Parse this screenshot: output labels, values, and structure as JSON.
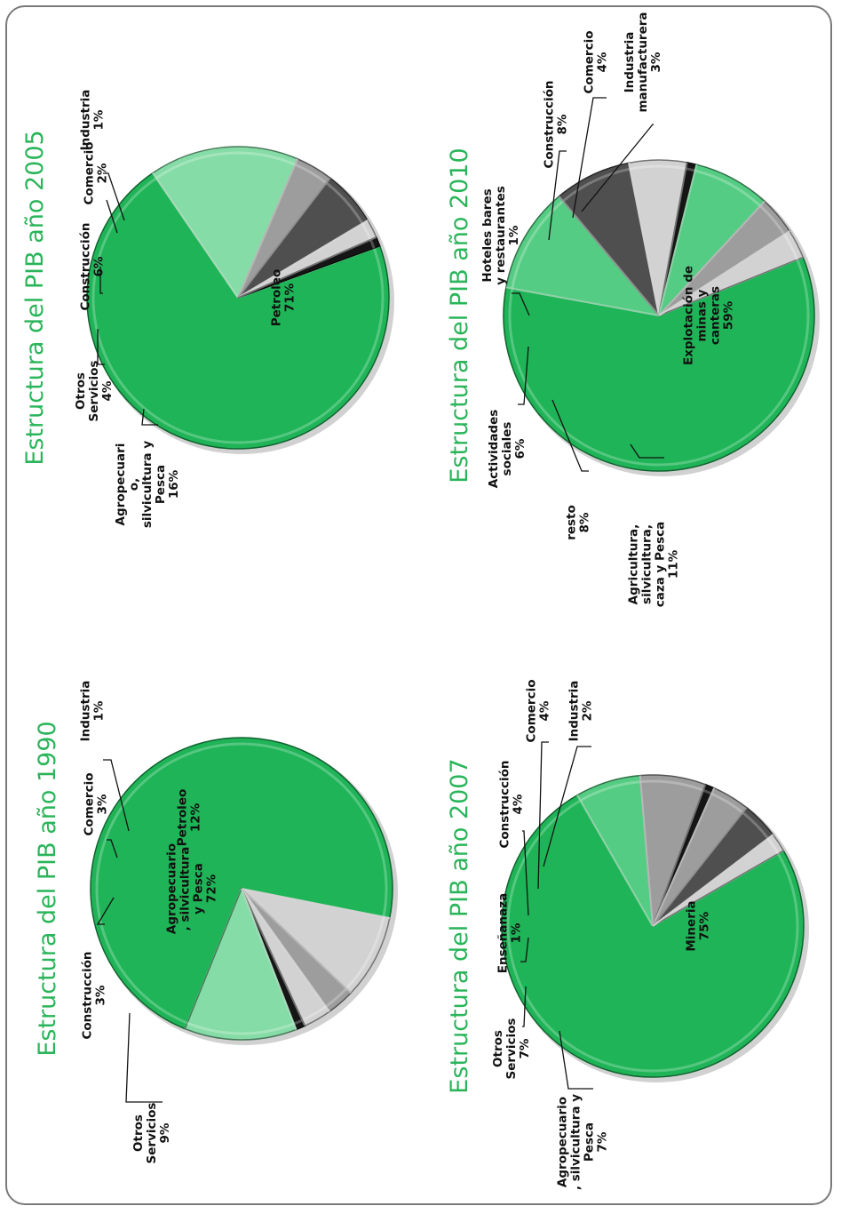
{
  "colors": {
    "green": "#1fb457",
    "light_green": "#86dca6",
    "mid_green": "#55cc83",
    "light_gray": "#d2d2d2",
    "gray": "#9d9d9d",
    "dark_gray": "#4f4f4f",
    "black": "#151515",
    "title_green": "#2ab55a"
  },
  "chart_data": [
    {
      "type": "pie",
      "title": "Estructura del PIB año 1990",
      "slices": [
        {
          "label": "Agropecuario, silvicultura y Pesca",
          "value": 72,
          "color": "green",
          "value_text": "72%",
          "label_lines": [
            "Agropecuario",
            ", silvicultura",
            "y Pesca",
            "72%"
          ]
        },
        {
          "label": "Otros Servicios",
          "value": 9,
          "color": "light_gray",
          "value_text": "9%",
          "label_lines": [
            "Otros",
            "Servicios",
            "9%"
          ]
        },
        {
          "label": "Construcción",
          "value": 3,
          "color": "gray",
          "value_text": "3%",
          "label_lines": [
            "Construcción",
            "3%"
          ]
        },
        {
          "label": "Comercio",
          "value": 3,
          "color": "light_gray",
          "value_text": "3%",
          "label_lines": [
            "Comercio",
            "3%"
          ]
        },
        {
          "label": "Industria",
          "value": 1,
          "color": "black",
          "value_text": "1%",
          "label_lines": [
            "Industria",
            "1%"
          ]
        },
        {
          "label": "Petroleo",
          "value": 12,
          "color": "light_green",
          "value_text": "12%",
          "label_lines": [
            "Petroleo",
            "12%"
          ]
        }
      ]
    },
    {
      "type": "pie",
      "title": "Estructura del PIB año 2005",
      "slices": [
        {
          "label": "Petroleo",
          "value": 71,
          "color": "green",
          "value_text": "71%",
          "label_lines": [
            "Petroleo",
            "71%"
          ]
        },
        {
          "label": "Agropecuario, silvicultura y Pesca",
          "value": 16,
          "color": "light_green",
          "value_text": "16%",
          "label_lines": [
            "Agropecuari",
            "o,",
            "silvicultura y",
            "Pesca",
            "16%"
          ]
        },
        {
          "label": "Otros Servicios",
          "value": 4,
          "color": "gray",
          "value_text": "4%",
          "label_lines": [
            "Otros",
            "Servicios",
            "4%"
          ]
        },
        {
          "label": "Construcción",
          "value": 6,
          "color": "dark_gray",
          "value_text": "6%",
          "label_lines": [
            "Construcción",
            "6%"
          ]
        },
        {
          "label": "Comercio",
          "value": 2,
          "color": "light_gray",
          "value_text": "2%",
          "label_lines": [
            "Comercio",
            "2%"
          ]
        },
        {
          "label": "Industria",
          "value": 1,
          "color": "black",
          "value_text": "1%",
          "label_lines": [
            "Industria",
            "1%"
          ]
        }
      ]
    },
    {
      "type": "pie",
      "title": "Estructura del PIB año 2007",
      "slices": [
        {
          "label": "Mineria",
          "value": 75,
          "color": "green",
          "value_text": "75%",
          "label_lines": [
            "Mineria",
            "75%"
          ]
        },
        {
          "label": "Agropecuario, silvicultura y Pesca",
          "value": 7,
          "color": "mid_green",
          "value_text": "7%",
          "label_lines": [
            "Agropecuario",
            ", silvicultura y",
            "Pesca",
            "7%"
          ]
        },
        {
          "label": "Otros Servicios",
          "value": 7,
          "color": "gray",
          "value_text": "7%",
          "label_lines": [
            "Otros",
            "Servicios",
            "7%"
          ]
        },
        {
          "label": "Enseñanaza",
          "value": 1,
          "color": "black",
          "value_text": "1%",
          "label_lines": [
            "Enseñanaza",
            "1%"
          ]
        },
        {
          "label": "Construcción",
          "value": 4,
          "color": "gray",
          "value_text": "4%",
          "label_lines": [
            "Construcción",
            "4%"
          ]
        },
        {
          "label": "Comercio",
          "value": 4,
          "color": "dark_gray",
          "value_text": "4%",
          "label_lines": [
            "Comercio",
            "4%"
          ]
        },
        {
          "label": "Industria",
          "value": 2,
          "color": "light_gray",
          "value_text": "2%",
          "label_lines": [
            "Industria",
            "2%"
          ]
        }
      ]
    },
    {
      "type": "pie",
      "title": "Estructura del PIB año 2010",
      "slices": [
        {
          "label": "Explotación de minas y canteras",
          "value": 59,
          "color": "green",
          "value_text": "59%",
          "label_lines": [
            "Explotación de",
            "minas y",
            "canteras",
            "59%"
          ]
        },
        {
          "label": "Agricultura, silvicultura, caza y Pesca",
          "value": 11,
          "color": "mid_green",
          "value_text": "11%",
          "label_lines": [
            "Agricultura,",
            "silvicultura,",
            "caza y Pesca",
            "11%"
          ]
        },
        {
          "label": "resto",
          "value": 8,
          "color": "dark_gray",
          "value_text": "8%",
          "label_lines": [
            "resto",
            "8%"
          ]
        },
        {
          "label": "Actividades sociales",
          "value": 6,
          "color": "light_gray",
          "value_text": "6%",
          "label_lines": [
            "Actividades",
            "sociales",
            "6%"
          ]
        },
        {
          "label": "Hoteles bares y restaurantes",
          "value": 1,
          "color": "black",
          "value_text": "1%",
          "label_lines": [
            "Hoteles bares",
            "y restaurantes",
            "1%"
          ]
        },
        {
          "label": "Construcción",
          "value": 8,
          "color": "mid_green",
          "value_text": "8%",
          "label_lines": [
            "Construcción",
            "8%"
          ]
        },
        {
          "label": "Comercio",
          "value": 4,
          "color": "gray",
          "value_text": "4%",
          "label_lines": [
            "Comercio",
            "4%"
          ]
        },
        {
          "label": "Industria manufacturera",
          "value": 3,
          "color": "light_gray",
          "value_text": "3%",
          "label_lines": [
            "Industria",
            "manufacturera",
            "3%"
          ]
        }
      ]
    }
  ]
}
